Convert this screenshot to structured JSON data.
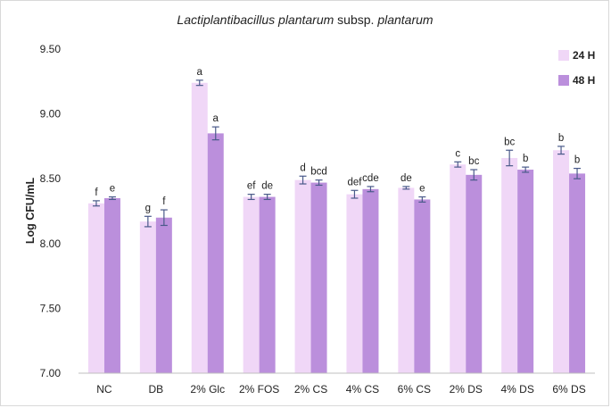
{
  "chart_data": {
    "type": "bar",
    "title_italic_1": "Lactiplantibacillus plantarum",
    "title_plain": " subsp. ",
    "title_italic_2": "plantarum",
    "xlabel": "",
    "ylabel": "Log CFU/mL",
    "ylim": [
      7.0,
      9.5
    ],
    "yticks": [
      "7.00",
      "7.50",
      "8.00",
      "8.50",
      "9.00",
      "9.50"
    ],
    "categories": [
      "NC",
      "DB",
      "2% Glc",
      "2% FOS",
      "2% CS",
      "4% CS",
      "6% CS",
      "2% DS",
      "4% DS",
      "6% DS"
    ],
    "series": [
      {
        "name": "24 H",
        "color": "#f0d7f7",
        "values": [
          8.31,
          8.17,
          9.24,
          8.36,
          8.49,
          8.38,
          8.43,
          8.61,
          8.66,
          8.72
        ],
        "errors": [
          0.02,
          0.04,
          0.02,
          0.02,
          0.03,
          0.03,
          0.01,
          0.02,
          0.06,
          0.03
        ],
        "labels": [
          "f",
          "g",
          "a",
          "ef",
          "d",
          "def",
          "de",
          "c",
          "bc",
          "b"
        ]
      },
      {
        "name": "48 H",
        "color": "#bb8fdc",
        "values": [
          8.35,
          8.2,
          8.85,
          8.36,
          8.47,
          8.42,
          8.34,
          8.53,
          8.57,
          8.54
        ],
        "errors": [
          0.01,
          0.06,
          0.05,
          0.02,
          0.02,
          0.02,
          0.02,
          0.04,
          0.02,
          0.04
        ],
        "labels": [
          "e",
          "f",
          "a",
          "de",
          "bcd",
          "cde",
          "e",
          "bc",
          "b",
          "b"
        ]
      }
    ],
    "grid": false,
    "legend_position": "top-right",
    "error_bar_color": "#4a5a8a"
  }
}
